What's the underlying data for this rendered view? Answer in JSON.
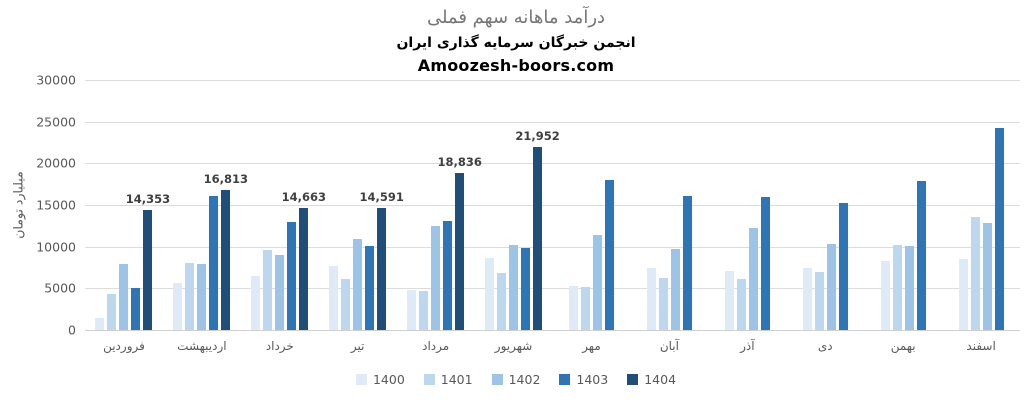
{
  "header": {
    "title": "درآمد ماهانه سهم فملی",
    "subtitle": "انجمن خبرگان سرمایه گذاری ایران",
    "site": "Amoozesh-boors.com"
  },
  "chart_data": {
    "type": "bar",
    "title": "درآمد ماهانه سهم فملی",
    "subtitle": "انجمن خبرگان سرمایه گذاری ایران",
    "watermark": "Amoozesh-boors.com",
    "ylabel": "میلیارد تومان",
    "ylim": [
      0,
      30000
    ],
    "yticks": [
      0,
      5000,
      10000,
      15000,
      20000,
      25000,
      30000
    ],
    "grid": true,
    "legend_position": "bottom",
    "categories": [
      "فروردین",
      "اردیبهشت",
      "خرداد",
      "تیر",
      "مرداد",
      "شهریور",
      "مهر",
      "آبان",
      "آذر",
      "دی",
      "بهمن",
      "اسفند"
    ],
    "series": [
      {
        "name": "1400",
        "color": "#deeaf6",
        "values": [
          1500,
          5600,
          6500,
          7700,
          4800,
          8600,
          5300,
          7400,
          7100,
          7500,
          8300,
          8500
        ]
      },
      {
        "name": "1401",
        "color": "#bdd7ee",
        "values": [
          4300,
          8000,
          9600,
          6100,
          4700,
          6900,
          5200,
          6300,
          6100,
          7000,
          10200,
          13600
        ]
      },
      {
        "name": "1402",
        "color": "#9dc3e6",
        "values": [
          7900,
          7900,
          9000,
          10900,
          12500,
          10200,
          11400,
          9700,
          12300,
          10300,
          10100,
          12800
        ]
      },
      {
        "name": "1403",
        "color": "#2e75b6",
        "values": [
          5100,
          16100,
          13000,
          10100,
          13100,
          9900,
          18000,
          16100,
          16000,
          15300,
          17900,
          24300
        ]
      },
      {
        "name": "1404",
        "color": "#1f4e79",
        "values": [
          14353,
          16813,
          14663,
          14591,
          18836,
          21952,
          null,
          null,
          null,
          null,
          null,
          null
        ],
        "labels": [
          "14,353",
          "16,813",
          "14,663",
          "14,591",
          "18,836",
          "21,952",
          "",
          "",
          "",
          "",
          "",
          ""
        ]
      }
    ]
  }
}
